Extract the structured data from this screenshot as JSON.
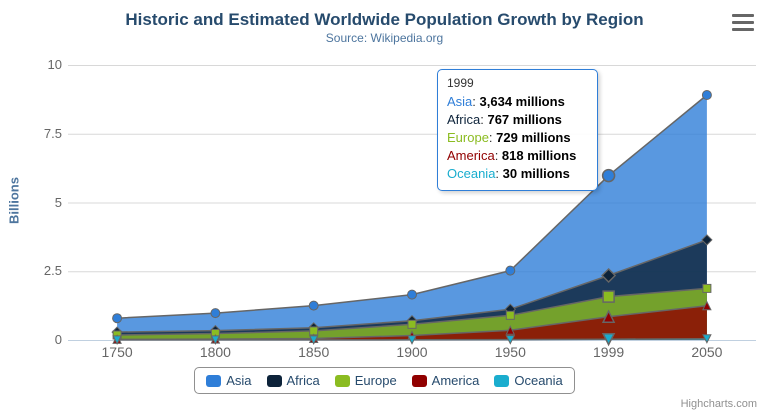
{
  "header": {
    "title": "Historic and Estimated Worldwide Population Growth by Region",
    "subtitle": "Source: Wikipedia.org"
  },
  "chart_data": {
    "type": "area",
    "stacking": "normal",
    "title": "Historic and Estimated Worldwide Population Growth by Region",
    "subtitle": "Source: Wikipedia.org",
    "categories": [
      "1750",
      "1800",
      "1850",
      "1900",
      "1950",
      "1999",
      "2050"
    ],
    "xlabel": "",
    "ylabel": "Billions",
    "ylim": [
      0,
      10
    ],
    "yticks": [
      "0",
      "2.5",
      "5",
      "7.5",
      "10"
    ],
    "grid": true,
    "legend_position": "bottom",
    "values_unit": "millions",
    "series": [
      {
        "name": "Asia",
        "color": "#2f7ed8",
        "marker": "circle",
        "values": [
          502,
          635,
          809,
          947,
          1402,
          3634,
          5268
        ]
      },
      {
        "name": "Africa",
        "color": "#0d233a",
        "marker": "diamond",
        "values": [
          106,
          107,
          111,
          133,
          221,
          767,
          1766
        ]
      },
      {
        "name": "Europe",
        "color": "#8bbc21",
        "marker": "square",
        "values": [
          163,
          203,
          276,
          408,
          547,
          729,
          628
        ]
      },
      {
        "name": "America",
        "color": "#910000",
        "marker": "triangle-up",
        "values": [
          18,
          31,
          54,
          156,
          339,
          818,
          1201
        ]
      },
      {
        "name": "Oceania",
        "color": "#1aadce",
        "marker": "triangle-down",
        "values": [
          2,
          2,
          2,
          6,
          13,
          30,
          46
        ]
      }
    ],
    "line_color": "#666666",
    "grid_color": "#d8d8d8",
    "axis_line_color": "#c0d0e0"
  },
  "tooltip": {
    "header": "1999",
    "hover_index": 5,
    "rows": [
      {
        "name": "Asia",
        "value": "3,634 millions"
      },
      {
        "name": "Africa",
        "value": "767 millions"
      },
      {
        "name": "Europe",
        "value": "729 millions"
      },
      {
        "name": "America",
        "value": "818 millions"
      },
      {
        "name": "Oceania",
        "value": "30 millions"
      }
    ]
  },
  "legend": {
    "items": [
      "Asia",
      "Africa",
      "Europe",
      "America",
      "Oceania"
    ]
  },
  "export_menu": {
    "icon": "hamburger-icon"
  },
  "credits": {
    "label": "Highcharts.com"
  }
}
